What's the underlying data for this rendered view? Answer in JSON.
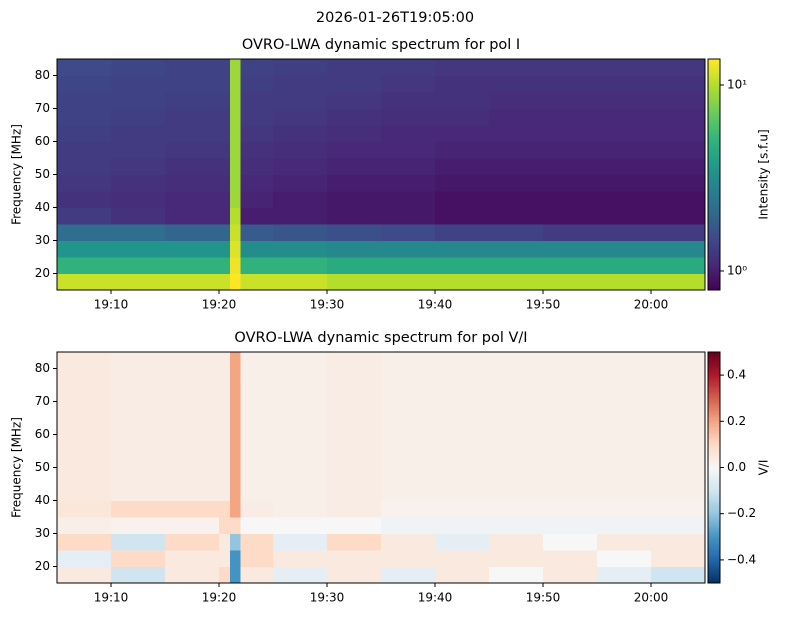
{
  "title": "2026-01-26T19:05:00",
  "chart_data": [
    {
      "type": "heatmap",
      "title": "OVRO-LWA dynamic spectrum for pol I",
      "ylabel": "Frequency [MHz]",
      "xbins": [
        1145,
        1150,
        1155,
        1160,
        1161,
        1162,
        1165,
        1170,
        1175,
        1180,
        1185,
        1190,
        1195,
        1200,
        1205
      ],
      "ybins": [
        15,
        20,
        25,
        30,
        35,
        40,
        45,
        50,
        55,
        60,
        65,
        70,
        75,
        80,
        85
      ],
      "z": [
        [
          11,
          11,
          11,
          11,
          14,
          11,
          11,
          10,
          10,
          10,
          10,
          10,
          10,
          10
        ],
        [
          5,
          5,
          5,
          5,
          13,
          5,
          5,
          4.5,
          4.5,
          4.5,
          4.5,
          4.5,
          4.5,
          4.5
        ],
        [
          3.5,
          3.5,
          3.5,
          3.5,
          12,
          3.2,
          3.2,
          3,
          3,
          3,
          3,
          3,
          3,
          3
        ],
        [
          2.2,
          2.2,
          2,
          2,
          11,
          1.8,
          1.7,
          1.6,
          1.5,
          1.4,
          1.4,
          1.3,
          1.3,
          1.3
        ],
        [
          1.3,
          1.2,
          1.1,
          1.1,
          10,
          1,
          1,
          0.95,
          0.95,
          0.9,
          0.9,
          0.9,
          0.9,
          0.9
        ],
        [
          1.2,
          1.15,
          1.1,
          1.1,
          9,
          1.05,
          1,
          0.95,
          0.95,
          0.9,
          0.9,
          0.9,
          0.9,
          0.9
        ],
        [
          1.25,
          1.2,
          1.15,
          1.15,
          9,
          1.1,
          1.05,
          1,
          1,
          0.95,
          0.95,
          0.95,
          0.95,
          0.95
        ],
        [
          1.3,
          1.25,
          1.2,
          1.2,
          9,
          1.15,
          1.1,
          1.05,
          1.05,
          1,
          1,
          1,
          1,
          1
        ],
        [
          1.3,
          1.3,
          1.25,
          1.25,
          9,
          1.2,
          1.15,
          1.1,
          1.1,
          1.05,
          1.05,
          1.05,
          1.05,
          1.05
        ],
        [
          1.35,
          1.3,
          1.3,
          1.3,
          9,
          1.25,
          1.2,
          1.15,
          1.1,
          1.1,
          1.1,
          1.1,
          1.1,
          1.1
        ],
        [
          1.4,
          1.35,
          1.3,
          1.3,
          9,
          1.3,
          1.25,
          1.2,
          1.15,
          1.15,
          1.1,
          1.1,
          1.1,
          1.1
        ],
        [
          1.4,
          1.4,
          1.35,
          1.35,
          9,
          1.3,
          1.3,
          1.25,
          1.2,
          1.2,
          1.15,
          1.15,
          1.15,
          1.15
        ],
        [
          1.45,
          1.4,
          1.4,
          1.4,
          9,
          1.35,
          1.3,
          1.3,
          1.25,
          1.2,
          1.2,
          1.2,
          1.2,
          1.2
        ],
        [
          1.5,
          1.45,
          1.4,
          1.4,
          9,
          1.4,
          1.35,
          1.3,
          1.3,
          1.25,
          1.25,
          1.25,
          1.25,
          1.25
        ]
      ],
      "xlim": [
        1145,
        1205
      ],
      "xticks": [
        {
          "value": 1150,
          "label": "19:10"
        },
        {
          "value": 1160,
          "label": "19:20"
        },
        {
          "value": 1170,
          "label": "19:30"
        },
        {
          "value": 1180,
          "label": "19:40"
        },
        {
          "value": 1190,
          "label": "19:50"
        },
        {
          "value": 1200,
          "label": "20:00"
        }
      ],
      "ylim": [
        15,
        85
      ],
      "yticks": [
        20,
        30,
        40,
        50,
        60,
        70,
        80
      ],
      "colormap": "viridis",
      "color_scale": "log",
      "colorbar_label": "Intensity [s.f.u]",
      "clim": [
        0.79,
        13.8
      ],
      "cticks": [
        {
          "value": 1,
          "label": "10⁰"
        },
        {
          "value": 10,
          "label": "10¹"
        }
      ]
    },
    {
      "type": "heatmap",
      "title": "OVRO-LWA dynamic spectrum for pol V/I",
      "ylabel": "Frequency [MHz]",
      "xbins": [
        1145,
        1150,
        1155,
        1160,
        1161,
        1162,
        1165,
        1170,
        1175,
        1180,
        1185,
        1190,
        1195,
        1200,
        1205
      ],
      "ybins": [
        15,
        20,
        25,
        30,
        35,
        40,
        45,
        50,
        55,
        60,
        65,
        70,
        75,
        80,
        85
      ],
      "z": [
        [
          0.05,
          -0.1,
          0.05,
          0.1,
          -0.3,
          0.05,
          -0.05,
          0.05,
          -0.05,
          0.05,
          0,
          0.05,
          -0.05,
          -0.1
        ],
        [
          -0.05,
          0.1,
          0.05,
          0.05,
          -0.3,
          0.1,
          0.05,
          0.05,
          0.05,
          0.05,
          0.05,
          0.05,
          0,
          0.05
        ],
        [
          0.1,
          -0.1,
          0.1,
          0.05,
          -0.2,
          0.1,
          -0.05,
          0.1,
          0.05,
          -0.05,
          0.05,
          0,
          0.05,
          0.05
        ],
        [
          0.03,
          0.02,
          0.02,
          0.1,
          0.1,
          0,
          0,
          0,
          -0.02,
          -0.02,
          -0.02,
          -0.02,
          -0.02,
          -0.02
        ],
        [
          0.06,
          0.1,
          0.1,
          0.1,
          0.2,
          0.04,
          0.03,
          0.04,
          0.02,
          0.02,
          0.02,
          0.02,
          0.02,
          0.02
        ],
        [
          0.05,
          0.04,
          0.04,
          0.04,
          0.2,
          0.03,
          0.03,
          0.04,
          0.03,
          0.03,
          0.03,
          0.03,
          0.03,
          0.03
        ],
        [
          0.05,
          0.04,
          0.04,
          0.04,
          0.2,
          0.03,
          0.03,
          0.04,
          0.03,
          0.03,
          0.03,
          0.03,
          0.03,
          0.03
        ],
        [
          0.05,
          0.04,
          0.04,
          0.04,
          0.2,
          0.03,
          0.03,
          0.04,
          0.03,
          0.03,
          0.03,
          0.03,
          0.03,
          0.03
        ],
        [
          0.05,
          0.04,
          0.04,
          0.04,
          0.2,
          0.03,
          0.03,
          0.04,
          0.03,
          0.03,
          0.03,
          0.03,
          0.03,
          0.03
        ],
        [
          0.05,
          0.04,
          0.04,
          0.04,
          0.2,
          0.03,
          0.03,
          0.04,
          0.03,
          0.03,
          0.03,
          0.03,
          0.03,
          0.03
        ],
        [
          0.05,
          0.04,
          0.04,
          0.04,
          0.2,
          0.03,
          0.03,
          0.04,
          0.03,
          0.03,
          0.03,
          0.03,
          0.03,
          0.03
        ],
        [
          0.05,
          0.04,
          0.04,
          0.04,
          0.2,
          0.03,
          0.03,
          0.04,
          0.03,
          0.03,
          0.03,
          0.03,
          0.03,
          0.03
        ],
        [
          0.05,
          0.04,
          0.04,
          0.04,
          0.2,
          0.03,
          0.03,
          0.04,
          0.03,
          0.03,
          0.03,
          0.03,
          0.03,
          0.03
        ],
        [
          0.05,
          0.04,
          0.04,
          0.04,
          0.2,
          0.03,
          0.03,
          0.04,
          0.03,
          0.03,
          0.03,
          0.03,
          0.03,
          0.03
        ]
      ],
      "xlim": [
        1145,
        1205
      ],
      "xticks": [
        {
          "value": 1150,
          "label": "19:10"
        },
        {
          "value": 1160,
          "label": "19:20"
        },
        {
          "value": 1170,
          "label": "19:30"
        },
        {
          "value": 1180,
          "label": "19:40"
        },
        {
          "value": 1190,
          "label": "19:50"
        },
        {
          "value": 1200,
          "label": "20:00"
        }
      ],
      "ylim": [
        15,
        85
      ],
      "yticks": [
        20,
        30,
        40,
        50,
        60,
        70,
        80
      ],
      "colormap": "RdBu_r",
      "color_scale": "linear",
      "colorbar_label": "V/I",
      "clim": [
        -0.5,
        0.5
      ],
      "cticks": [
        {
          "value": -0.4,
          "label": "−0.4"
        },
        {
          "value": -0.2,
          "label": "−0.2"
        },
        0.0,
        0.2,
        0.4
      ]
    }
  ]
}
